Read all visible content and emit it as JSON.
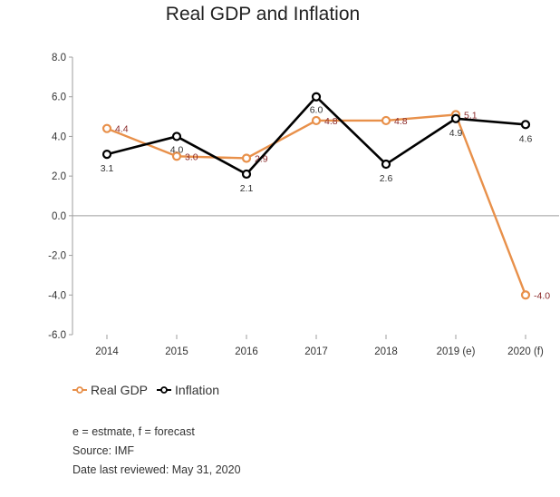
{
  "chart_data": {
    "type": "line",
    "title": "Real GDP and Inflation",
    "xlabel": "",
    "ylabel": "",
    "categories": [
      "2014",
      "2015",
      "2016",
      "2017",
      "2018",
      "2019 (e)",
      "2020 (f)"
    ],
    "y_ticks": [
      "8.0",
      "6.0",
      "4.0",
      "2.0",
      "0.0",
      "-2.0",
      "-4.0",
      "-6.0"
    ],
    "ylim": [
      -6,
      8
    ],
    "grid": false,
    "legend_position": "bottom-left",
    "series": [
      {
        "name": "Real GDP",
        "color": "#E8904A",
        "label_color": "#8B2A2A",
        "values": [
          4.4,
          3.0,
          2.9,
          4.8,
          4.8,
          5.1,
          -4.0
        ],
        "labels": [
          "4.4",
          "3.0",
          "2.9",
          "4.8",
          "4.8",
          "5.1",
          "-4.0"
        ]
      },
      {
        "name": "Inflation",
        "color": "#000000",
        "label_color": "#333333",
        "values": [
          3.1,
          4.0,
          2.1,
          6.0,
          2.6,
          4.9,
          4.6
        ],
        "labels": [
          "3.1",
          "4.0",
          "2.1",
          "6.0",
          "2.6",
          "4.9",
          "4.6"
        ]
      }
    ],
    "zero_line_color": "#9E9E9E"
  },
  "notes": {
    "line1": "e = estmate, f = forecast",
    "line2": "Source: IMF",
    "line3": "Date last reviewed: May 31, 2020"
  }
}
